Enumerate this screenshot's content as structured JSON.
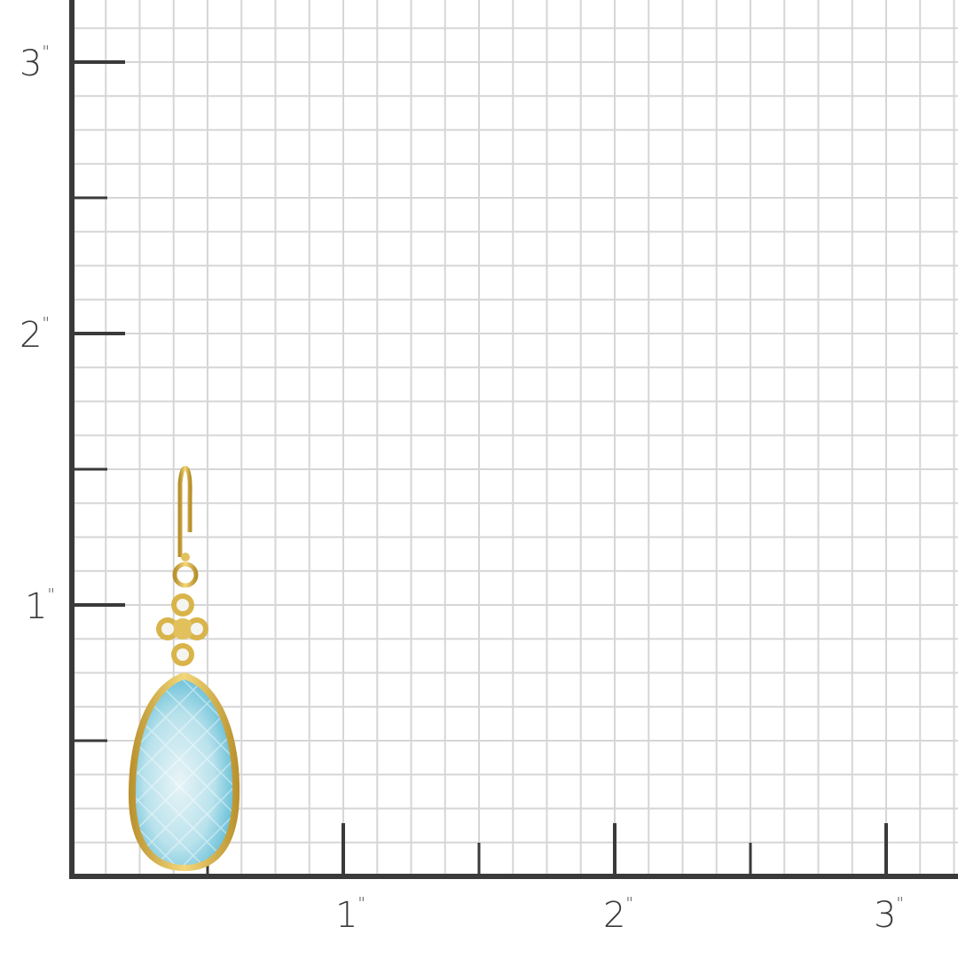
{
  "colors": {
    "grid": "#d6d6d6",
    "axis": "#3a3a3a",
    "gold": "#d9b44a",
    "stone": "#8fd0e0"
  },
  "y_axis": {
    "labels": [
      {
        "value": "3",
        "unit": "\""
      },
      {
        "value": "2",
        "unit": "\""
      },
      {
        "value": "1",
        "unit": "\""
      }
    ]
  },
  "x_axis": {
    "labels": [
      {
        "value": "1",
        "unit": "\""
      },
      {
        "value": "2",
        "unit": "\""
      },
      {
        "value": "3",
        "unit": "\""
      }
    ]
  },
  "subject": {
    "icon": "earring-blue-topaz-teardrop-gold-bezel"
  }
}
